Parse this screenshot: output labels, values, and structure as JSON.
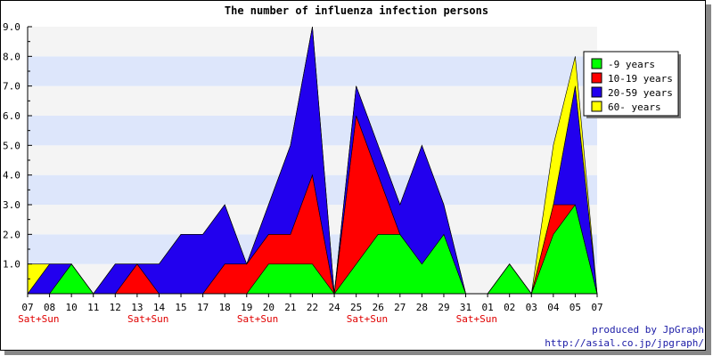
{
  "chart_data": {
    "type": "area",
    "stacked": true,
    "title": "The number of influenza infection persons",
    "xlabel": "",
    "ylabel": "",
    "ylim": [
      0,
      9
    ],
    "yticks": [
      "1.0",
      "2.0",
      "3.0",
      "4.0",
      "5.0",
      "6.0",
      "7.0",
      "8.0",
      "9.0"
    ],
    "categories": [
      "07",
      "08",
      "10",
      "11",
      "12",
      "13",
      "14",
      "15",
      "17",
      "18",
      "19",
      "20",
      "21",
      "22",
      "24",
      "25",
      "26",
      "27",
      "28",
      "29",
      "31",
      "01",
      "02",
      "03",
      "04",
      "05",
      "07"
    ],
    "weekend_marks": [
      {
        "index": 0,
        "label": "Sat+Sun"
      },
      {
        "index": 5,
        "label": "Sat+Sun"
      },
      {
        "index": 10,
        "label": "Sat+Sun"
      },
      {
        "index": 15,
        "label": "Sat+Sun"
      },
      {
        "index": 20,
        "label": "Sat+Sun"
      }
    ],
    "series": [
      {
        "name": "-9 years",
        "color": "#00ff00",
        "values": [
          0,
          0,
          1,
          0,
          0,
          0,
          0,
          0,
          0,
          0,
          0,
          1,
          1,
          1,
          0,
          1,
          2,
          2,
          1,
          2,
          0,
          0,
          1,
          0,
          2,
          3,
          0
        ]
      },
      {
        "name": "10-19 years",
        "color": "#ff0000",
        "values": [
          0,
          0,
          0,
          0,
          0,
          1,
          0,
          0,
          0,
          1,
          1,
          1,
          1,
          3,
          0,
          5,
          2,
          0,
          0,
          0,
          0,
          0,
          0,
          0,
          1,
          0,
          0
        ]
      },
      {
        "name": "20-59 years",
        "color": "#2200ee",
        "values": [
          0,
          1,
          0,
          0,
          1,
          0,
          1,
          2,
          2,
          2,
          0,
          1,
          3,
          5,
          0,
          1,
          1,
          1,
          4,
          1,
          0,
          0,
          0,
          0,
          0,
          4,
          0
        ]
      },
      {
        "name": "60- years",
        "color": "#ffff00",
        "values": [
          1,
          0,
          0,
          0,
          0,
          0,
          0,
          0,
          0,
          0,
          0,
          0,
          0,
          0,
          0,
          0,
          0,
          0,
          0,
          0,
          0,
          0,
          0,
          0,
          2,
          1,
          0
        ]
      }
    ],
    "grid": true,
    "band_colors": [
      "#f4f4f4",
      "#dde6fb"
    ],
    "legend_position": "top-right"
  },
  "footer": {
    "line1": "produced by JpGraph",
    "line2": "http://asial.co.jp/jpgraph/"
  }
}
